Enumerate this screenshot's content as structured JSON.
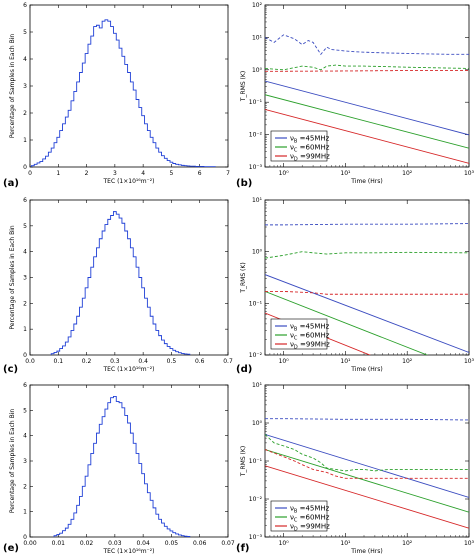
{
  "panel_labels": [
    "(a)",
    "(b)",
    "(c)",
    "(d)",
    "(e)",
    "(f)"
  ],
  "colors": {
    "blue": "#3b4cc0",
    "green": "#2ca02c",
    "red": "#d62728",
    "hist": "#1f3fd6",
    "frame": "#000000"
  },
  "chart_data": [
    {
      "id": "a",
      "type": "bar",
      "subtype": "step-histogram",
      "xlabel": "TEC (1×10¹⁶m⁻²)",
      "ylabel": "Percentage of Samples in Each Bin",
      "xlim": [
        0,
        7
      ],
      "ylim": [
        0,
        6
      ],
      "xticks": [
        "0",
        "1",
        "2",
        "3",
        "4",
        "5",
        "6",
        "7"
      ],
      "yticks": [
        "0",
        "1",
        "2",
        "3",
        "4",
        "5",
        "6"
      ],
      "x": [
        0.1,
        0.2,
        0.3,
        0.4,
        0.5,
        0.6,
        0.7,
        0.8,
        0.9,
        1.0,
        1.1,
        1.2,
        1.3,
        1.4,
        1.5,
        1.6,
        1.7,
        1.8,
        1.9,
        2.0,
        2.1,
        2.2,
        2.3,
        2.4,
        2.5,
        2.6,
        2.7,
        2.8,
        2.9,
        3.0,
        3.1,
        3.2,
        3.3,
        3.4,
        3.5,
        3.6,
        3.7,
        3.8,
        3.9,
        4.0,
        4.1,
        4.2,
        4.3,
        4.4,
        4.5,
        4.6,
        4.7,
        4.8,
        4.9,
        5.0,
        5.1,
        5.2,
        5.3,
        5.4,
        5.5,
        5.6,
        5.7,
        5.8,
        5.9,
        6.0,
        6.1,
        6.2,
        6.3,
        6.4,
        6.5
      ],
      "values": [
        0.05,
        0.1,
        0.15,
        0.2,
        0.3,
        0.4,
        0.55,
        0.7,
        0.9,
        1.1,
        1.35,
        1.6,
        1.85,
        2.1,
        2.45,
        2.8,
        3.15,
        3.5,
        3.85,
        4.2,
        4.55,
        4.85,
        5.2,
        5.25,
        5.15,
        5.4,
        5.45,
        5.4,
        5.2,
        4.95,
        4.7,
        4.4,
        4.1,
        3.8,
        3.5,
        3.15,
        2.85,
        2.5,
        2.2,
        1.9,
        1.6,
        1.35,
        1.1,
        0.9,
        0.7,
        0.55,
        0.42,
        0.32,
        0.24,
        0.18,
        0.13,
        0.1,
        0.08,
        0.06,
        0.05,
        0.04,
        0.03,
        0.03,
        0.02,
        0.02,
        0.02,
        0.01,
        0.01,
        0.01,
        0.01
      ]
    },
    {
      "id": "b",
      "type": "line",
      "xlabel": "Time (Hrs)",
      "ylabel": "T_RMS (K)",
      "xscale": "log",
      "yscale": "log",
      "xlim": [
        0.5,
        1000
      ],
      "ylim": [
        0.001,
        100
      ],
      "xticks": [
        {
          "v": 1,
          "label": "10⁰"
        },
        {
          "v": 10,
          "label": "10¹"
        },
        {
          "v": 100,
          "label": "10²"
        },
        {
          "v": 1000,
          "label": "10³"
        }
      ],
      "yticks": [
        {
          "v": 0.001,
          "label": "10⁻³"
        },
        {
          "v": 0.01,
          "label": "10⁻²"
        },
        {
          "v": 0.1,
          "label": "10⁻¹"
        },
        {
          "v": 1,
          "label": "10⁰"
        },
        {
          "v": 10,
          "label": "10¹"
        },
        {
          "v": 100,
          "label": "10²"
        }
      ],
      "legend": {
        "position": "bottom-left",
        "entries": [
          "ν_B =45MHz",
          "ν_C =60MHz",
          "ν_D =99MHz"
        ]
      },
      "series": [
        {
          "style": "solid",
          "color": "blue",
          "x": [
            0.5,
            1000
          ],
          "values": [
            0.45,
            0.0098
          ]
        },
        {
          "style": "solid",
          "color": "green",
          "x": [
            0.5,
            1000
          ],
          "values": [
            0.17,
            0.0038
          ]
        },
        {
          "style": "solid",
          "color": "red",
          "x": [
            0.5,
            1000
          ],
          "values": [
            0.06,
            0.0013
          ]
        },
        {
          "style": "dashed",
          "color": "blue",
          "x": [
            0.5,
            0.7,
            1,
            1.5,
            2,
            2.5,
            3,
            4,
            5,
            6,
            8,
            10,
            15,
            20,
            30,
            50,
            100,
            200,
            500,
            1000
          ],
          "values": [
            10,
            7,
            12,
            9,
            6,
            8,
            7,
            3,
            5,
            4.2,
            4,
            3.8,
            3.6,
            3.5,
            3.4,
            3.3,
            3.2,
            3.1,
            3.0,
            3.0
          ]
        },
        {
          "style": "dashed",
          "color": "green",
          "x": [
            0.5,
            1,
            2,
            3,
            4,
            5,
            7,
            10,
            20,
            50,
            100,
            300,
            1000
          ],
          "values": [
            1.1,
            1.0,
            1.3,
            1.2,
            1.0,
            1.3,
            1.4,
            1.3,
            1.3,
            1.25,
            1.2,
            1.15,
            1.1
          ]
        },
        {
          "style": "dashed",
          "color": "red",
          "x": [
            0.5,
            1,
            10,
            100,
            1000
          ],
          "values": [
            0.9,
            0.9,
            0.92,
            0.95,
            0.95
          ]
        }
      ]
    },
    {
      "id": "c",
      "type": "bar",
      "subtype": "step-histogram",
      "xlabel": "TEC (1×10¹⁶m⁻²)",
      "ylabel": "Percentage of Samples in Each Bin",
      "xlim": [
        0,
        0.7
      ],
      "ylim": [
        0,
        6
      ],
      "xticks": [
        "0.0",
        "0.1",
        "0.2",
        "0.3",
        "0.4",
        "0.5",
        "0.6",
        "0.7"
      ],
      "yticks": [
        "0",
        "1",
        "2",
        "3",
        "4",
        "5",
        "6"
      ],
      "x": [
        0.08,
        0.09,
        0.1,
        0.11,
        0.12,
        0.13,
        0.14,
        0.15,
        0.16,
        0.17,
        0.18,
        0.19,
        0.2,
        0.21,
        0.22,
        0.23,
        0.24,
        0.25,
        0.26,
        0.27,
        0.28,
        0.29,
        0.3,
        0.31,
        0.32,
        0.33,
        0.34,
        0.35,
        0.36,
        0.37,
        0.38,
        0.39,
        0.4,
        0.41,
        0.42,
        0.43,
        0.44,
        0.45,
        0.46,
        0.47,
        0.48,
        0.49,
        0.5,
        0.51,
        0.52,
        0.53,
        0.54,
        0.55,
        0.56
      ],
      "values": [
        0.05,
        0.1,
        0.15,
        0.25,
        0.35,
        0.5,
        0.7,
        0.95,
        1.2,
        1.5,
        1.85,
        2.2,
        2.6,
        3.0,
        3.4,
        3.8,
        4.15,
        4.5,
        4.8,
        5.05,
        5.25,
        5.4,
        5.55,
        5.45,
        5.3,
        5.1,
        4.8,
        4.5,
        4.15,
        3.8,
        3.4,
        3.0,
        2.6,
        2.2,
        1.85,
        1.5,
        1.2,
        0.95,
        0.75,
        0.58,
        0.44,
        0.33,
        0.25,
        0.18,
        0.13,
        0.09,
        0.06,
        0.04,
        0.03
      ]
    },
    {
      "id": "d",
      "type": "line",
      "xlabel": "Time (Hrs)",
      "ylabel": "T_RMS (K)",
      "xscale": "log",
      "yscale": "log",
      "xlim": [
        0.5,
        1000
      ],
      "ylim": [
        0.01,
        10
      ],
      "xticks": [
        {
          "v": 1,
          "label": "10⁰"
        },
        {
          "v": 10,
          "label": "10¹"
        },
        {
          "v": 100,
          "label": "10²"
        },
        {
          "v": 1000,
          "label": "10³"
        }
      ],
      "yticks": [
        {
          "v": 0.01,
          "label": "10⁻²"
        },
        {
          "v": 0.1,
          "label": "10⁻¹"
        },
        {
          "v": 1,
          "label": "10⁰"
        },
        {
          "v": 10,
          "label": "10¹"
        }
      ],
      "legend": {
        "position": "bottom-left",
        "entries": [
          "ν_B =45MHz",
          "ν_C =60MHz",
          "ν_D =99MHz"
        ]
      },
      "series": [
        {
          "style": "solid",
          "color": "blue",
          "x": [
            0.5,
            1000
          ],
          "values": [
            0.36,
            0.0112
          ]
        },
        {
          "style": "solid",
          "color": "green",
          "x": [
            0.5,
            1000
          ],
          "values": [
            0.17,
            0.0048
          ]
        },
        {
          "style": "solid",
          "color": "red",
          "x": [
            0.5,
            1000
          ],
          "values": [
            0.065,
            0.0017
          ]
        },
        {
          "style": "dashed",
          "color": "blue",
          "x": [
            0.5,
            1,
            10,
            100,
            1000
          ],
          "values": [
            3.3,
            3.3,
            3.4,
            3.4,
            3.5
          ]
        },
        {
          "style": "dashed",
          "color": "green",
          "x": [
            0.5,
            1,
            2,
            3,
            5,
            10,
            30,
            100,
            1000
          ],
          "values": [
            0.75,
            0.85,
            1.0,
            0.95,
            0.9,
            0.95,
            0.95,
            0.97,
            0.95
          ]
        },
        {
          "style": "dashed",
          "color": "red",
          "x": [
            0.5,
            1,
            3,
            5,
            10,
            100,
            1000
          ],
          "values": [
            0.17,
            0.17,
            0.16,
            0.15,
            0.15,
            0.15,
            0.15
          ]
        }
      ]
    },
    {
      "id": "e",
      "type": "bar",
      "subtype": "step-histogram",
      "xlabel": "TEC (1×10¹⁶m⁻²)",
      "ylabel": "Percentage of Samples in Each Bin",
      "xlim": [
        0,
        0.07
      ],
      "ylim": [
        0,
        6
      ],
      "xticks": [
        "0.00",
        "0.01",
        "0.02",
        "0.03",
        "0.04",
        "0.05",
        "0.06",
        "0.07"
      ],
      "yticks": [
        "0",
        "1",
        "2",
        "3",
        "4",
        "5",
        "6"
      ],
      "x": [
        0.009,
        0.01,
        0.011,
        0.012,
        0.013,
        0.014,
        0.015,
        0.016,
        0.017,
        0.018,
        0.019,
        0.02,
        0.021,
        0.022,
        0.023,
        0.024,
        0.025,
        0.026,
        0.027,
        0.028,
        0.029,
        0.03,
        0.031,
        0.032,
        0.033,
        0.034,
        0.035,
        0.036,
        0.037,
        0.038,
        0.039,
        0.04,
        0.041,
        0.042,
        0.043,
        0.044,
        0.045,
        0.046,
        0.047,
        0.048,
        0.049,
        0.05,
        0.051,
        0.052,
        0.053,
        0.054,
        0.055,
        0.056
      ],
      "values": [
        0.05,
        0.1,
        0.15,
        0.25,
        0.35,
        0.5,
        0.7,
        0.95,
        1.25,
        1.6,
        2.0,
        2.4,
        2.85,
        3.3,
        3.7,
        4.1,
        4.45,
        4.75,
        5.05,
        5.3,
        5.5,
        5.55,
        5.35,
        5.3,
        5.1,
        4.8,
        4.5,
        4.1,
        3.7,
        3.3,
        2.9,
        2.5,
        2.1,
        1.75,
        1.45,
        1.15,
        0.9,
        0.7,
        0.55,
        0.42,
        0.32,
        0.24,
        0.17,
        0.12,
        0.08,
        0.05,
        0.03,
        0.02
      ]
    },
    {
      "id": "f",
      "type": "line",
      "xlabel": "Time (Hrs)",
      "ylabel": "T_RMS (K)",
      "xscale": "log",
      "yscale": "log",
      "xlim": [
        0.5,
        1000
      ],
      "ylim": [
        0.001,
        10
      ],
      "xticks": [
        {
          "v": 1,
          "label": "10⁰"
        },
        {
          "v": 10,
          "label": "10¹"
        },
        {
          "v": 100,
          "label": "10²"
        },
        {
          "v": 1000,
          "label": "10³"
        }
      ],
      "yticks": [
        {
          "v": 0.001,
          "label": "10⁻³"
        },
        {
          "v": 0.01,
          "label": "10⁻²"
        },
        {
          "v": 0.1,
          "label": "10⁻¹"
        },
        {
          "v": 1,
          "label": "10⁰"
        },
        {
          "v": 10,
          "label": "10¹"
        }
      ],
      "legend": {
        "position": "bottom-left",
        "entries": [
          "ν_B =45MHz",
          "ν_C =60MHz",
          "ν_D =99MHz"
        ]
      },
      "series": [
        {
          "style": "solid",
          "color": "blue",
          "x": [
            0.5,
            1000
          ],
          "values": [
            0.5,
            0.011
          ]
        },
        {
          "style": "solid",
          "color": "green",
          "x": [
            0.5,
            1000
          ],
          "values": [
            0.2,
            0.0045
          ]
        },
        {
          "style": "solid",
          "color": "red",
          "x": [
            0.5,
            1000
          ],
          "values": [
            0.075,
            0.0017
          ]
        },
        {
          "style": "dashed",
          "color": "blue",
          "x": [
            0.5,
            1,
            10,
            100,
            1000
          ],
          "values": [
            1.3,
            1.3,
            1.25,
            1.25,
            1.2
          ]
        },
        {
          "style": "dashed",
          "color": "green",
          "x": [
            0.5,
            0.7,
            1,
            1.5,
            2,
            3,
            4,
            5,
            7,
            10,
            15,
            20,
            30,
            50,
            100,
            200,
            500,
            1000
          ],
          "values": [
            0.5,
            0.3,
            0.25,
            0.2,
            0.15,
            0.12,
            0.09,
            0.065,
            0.06,
            0.055,
            0.06,
            0.06,
            0.055,
            0.06,
            0.06,
            0.06,
            0.06,
            0.06
          ]
        },
        {
          "style": "dashed",
          "color": "red",
          "x": [
            0.5,
            1,
            1.5,
            2,
            3,
            5,
            7,
            10,
            20,
            50,
            100,
            300,
            1000
          ],
          "values": [
            0.2,
            0.13,
            0.1,
            0.08,
            0.06,
            0.05,
            0.04,
            0.035,
            0.035,
            0.035,
            0.035,
            0.035,
            0.035
          ]
        }
      ]
    }
  ]
}
